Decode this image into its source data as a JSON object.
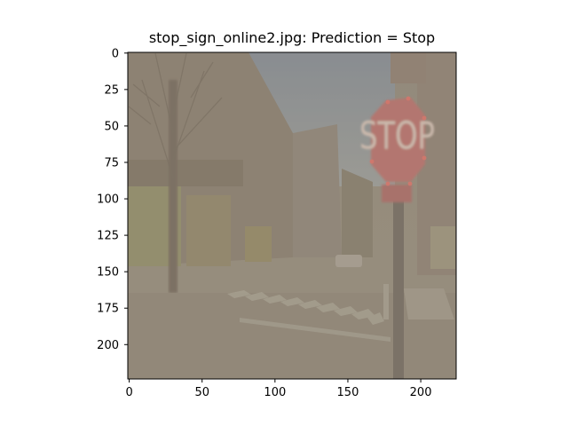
{
  "figure": {
    "title": "stop_sign_online2.jpg: Prediction = Stop"
  },
  "axes": {
    "xlim": [
      0,
      224
    ],
    "ylim": [
      224,
      0
    ],
    "xticks": [
      0,
      50,
      100,
      150,
      200
    ],
    "yticks": [
      0,
      25,
      50,
      75,
      100,
      125,
      150,
      175,
      200
    ]
  },
  "image": {
    "description_icon": "street-scene-image",
    "sign_text": "STOP",
    "colors": {
      "sky": "#8d949a",
      "street": "#8a8174",
      "sign": "#b85a5a",
      "overlay": "#a89a88"
    }
  }
}
